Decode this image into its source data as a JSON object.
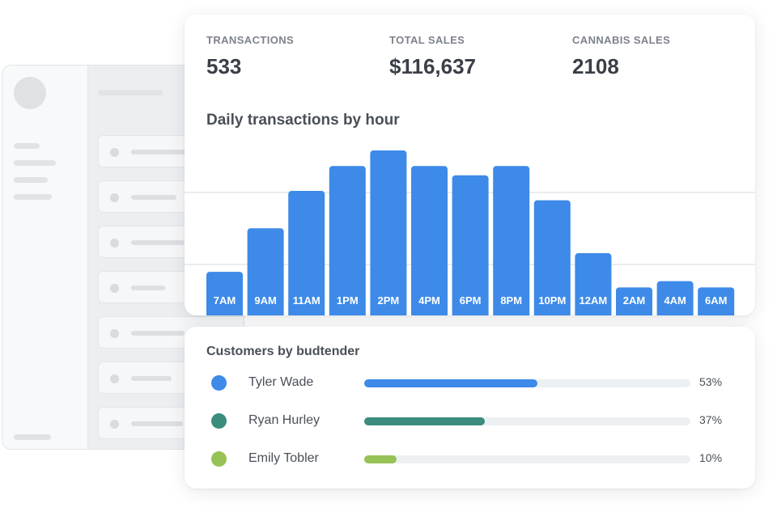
{
  "stats": [
    {
      "label": "TRANSACTIONS",
      "value": "533"
    },
    {
      "label": "TOTAL SALES",
      "value": "$116,637"
    },
    {
      "label": "CANNABIS SALES",
      "value": "2108"
    }
  ],
  "chart": {
    "title": "Daily transactions by hour"
  },
  "chart_data": {
    "type": "bar",
    "title": "Daily transactions by hour",
    "categories": [
      "7AM",
      "9AM",
      "11AM",
      "1PM",
      "2PM",
      "4PM",
      "6PM",
      "8PM",
      "10PM",
      "12AM",
      "2AM",
      "4AM",
      "6AM"
    ],
    "values": [
      14,
      28,
      40,
      48,
      53,
      48,
      45,
      48,
      37,
      20,
      9,
      11,
      9
    ],
    "ylim": [
      0,
      55
    ],
    "grid": true,
    "color": "#3d8ae8"
  },
  "budtenders": {
    "title": "Customers by budtender",
    "items": [
      {
        "name": "Tyler Wade",
        "percent": "53%",
        "value": 0.53,
        "color": "#3d8ae8"
      },
      {
        "name": "Ryan Hurley",
        "percent": "37%",
        "value": 0.37,
        "color": "#3a8c7c"
      },
      {
        "name": "Emily Tobler",
        "percent": "10%",
        "value": 0.1,
        "color": "#96c256"
      }
    ]
  }
}
